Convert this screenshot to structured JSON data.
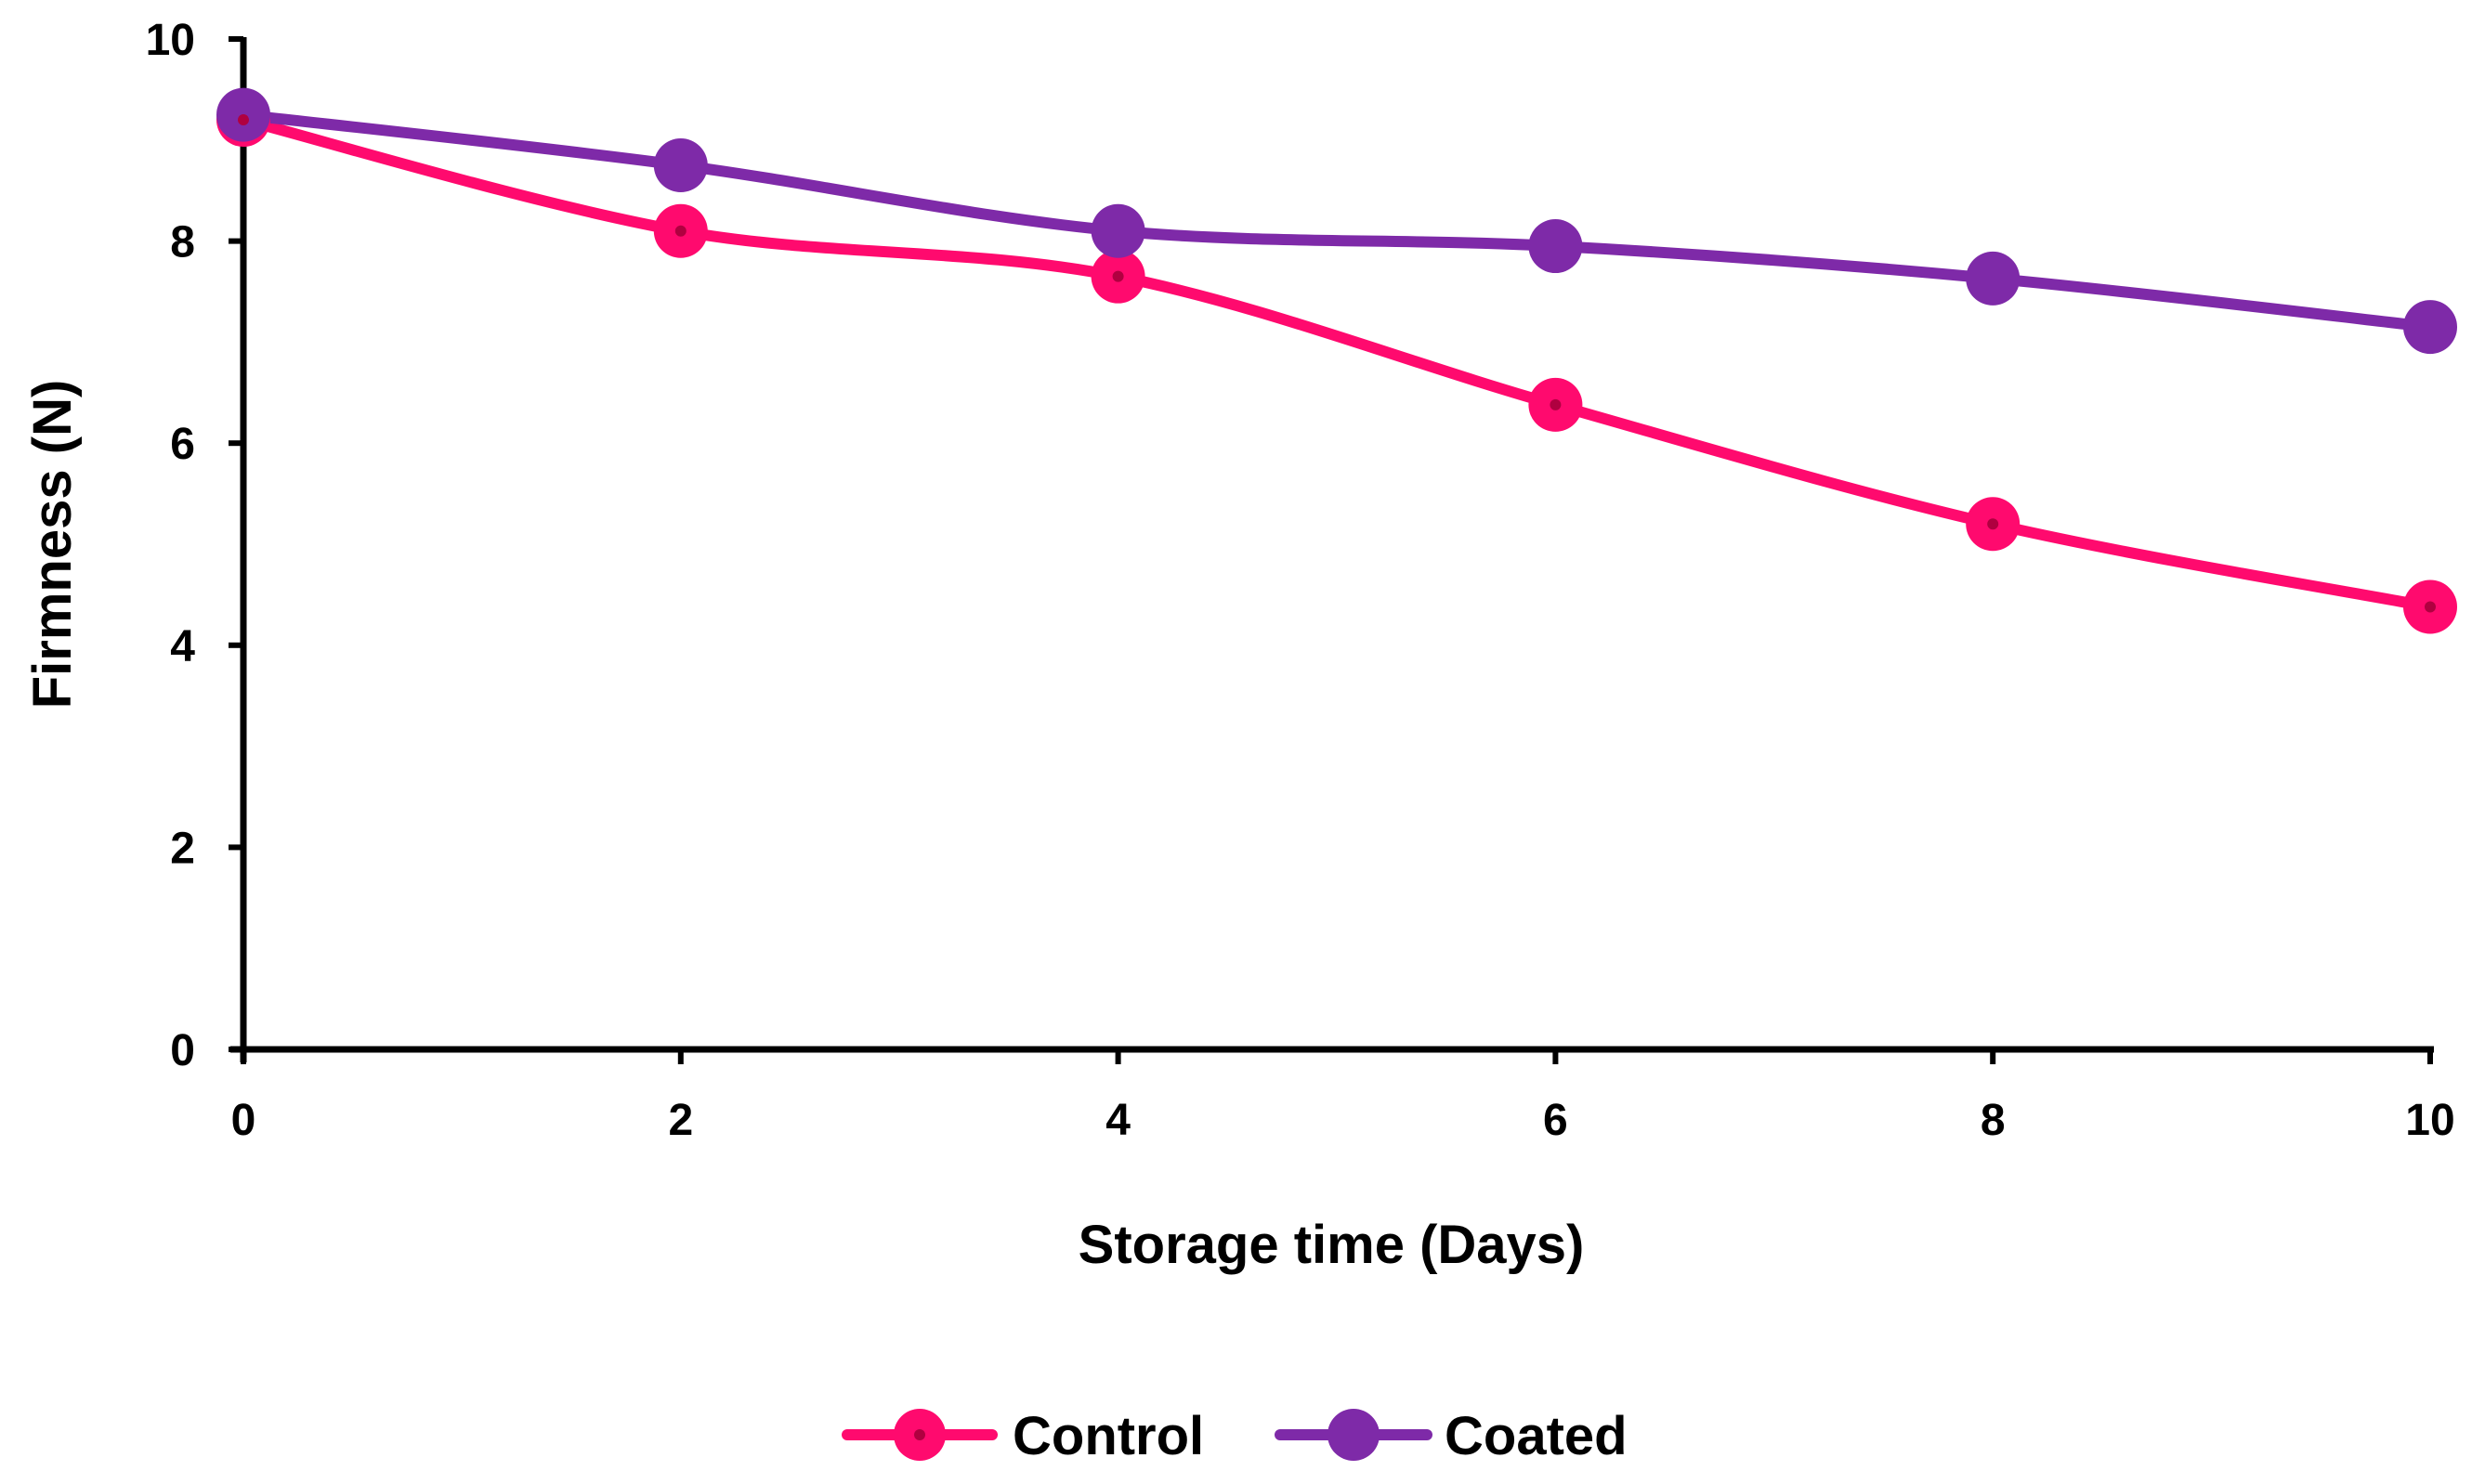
{
  "chart_data": {
    "type": "line",
    "title": "",
    "xlabel": "Storage time (Days)",
    "ylabel": "Firmness (N)",
    "x": [
      0,
      2,
      4,
      6,
      8,
      10
    ],
    "xticks": [
      0,
      2,
      4,
      6,
      8,
      10
    ],
    "yticks": [
      0,
      2,
      4,
      6,
      8,
      10
    ],
    "xlim": [
      0,
      10
    ],
    "ylim": [
      0,
      10
    ],
    "grid": false,
    "legend_position": "bottom-center",
    "smooth": true,
    "series": [
      {
        "name": "Control",
        "color": "#FF0A6E",
        "values": [
          9.2,
          8.1,
          7.65,
          6.38,
          5.2,
          4.38
        ]
      },
      {
        "name": "Coated",
        "color": "#7E2AA8",
        "values": [
          9.25,
          8.75,
          8.1,
          7.95,
          7.63,
          7.15
        ]
      }
    ]
  }
}
